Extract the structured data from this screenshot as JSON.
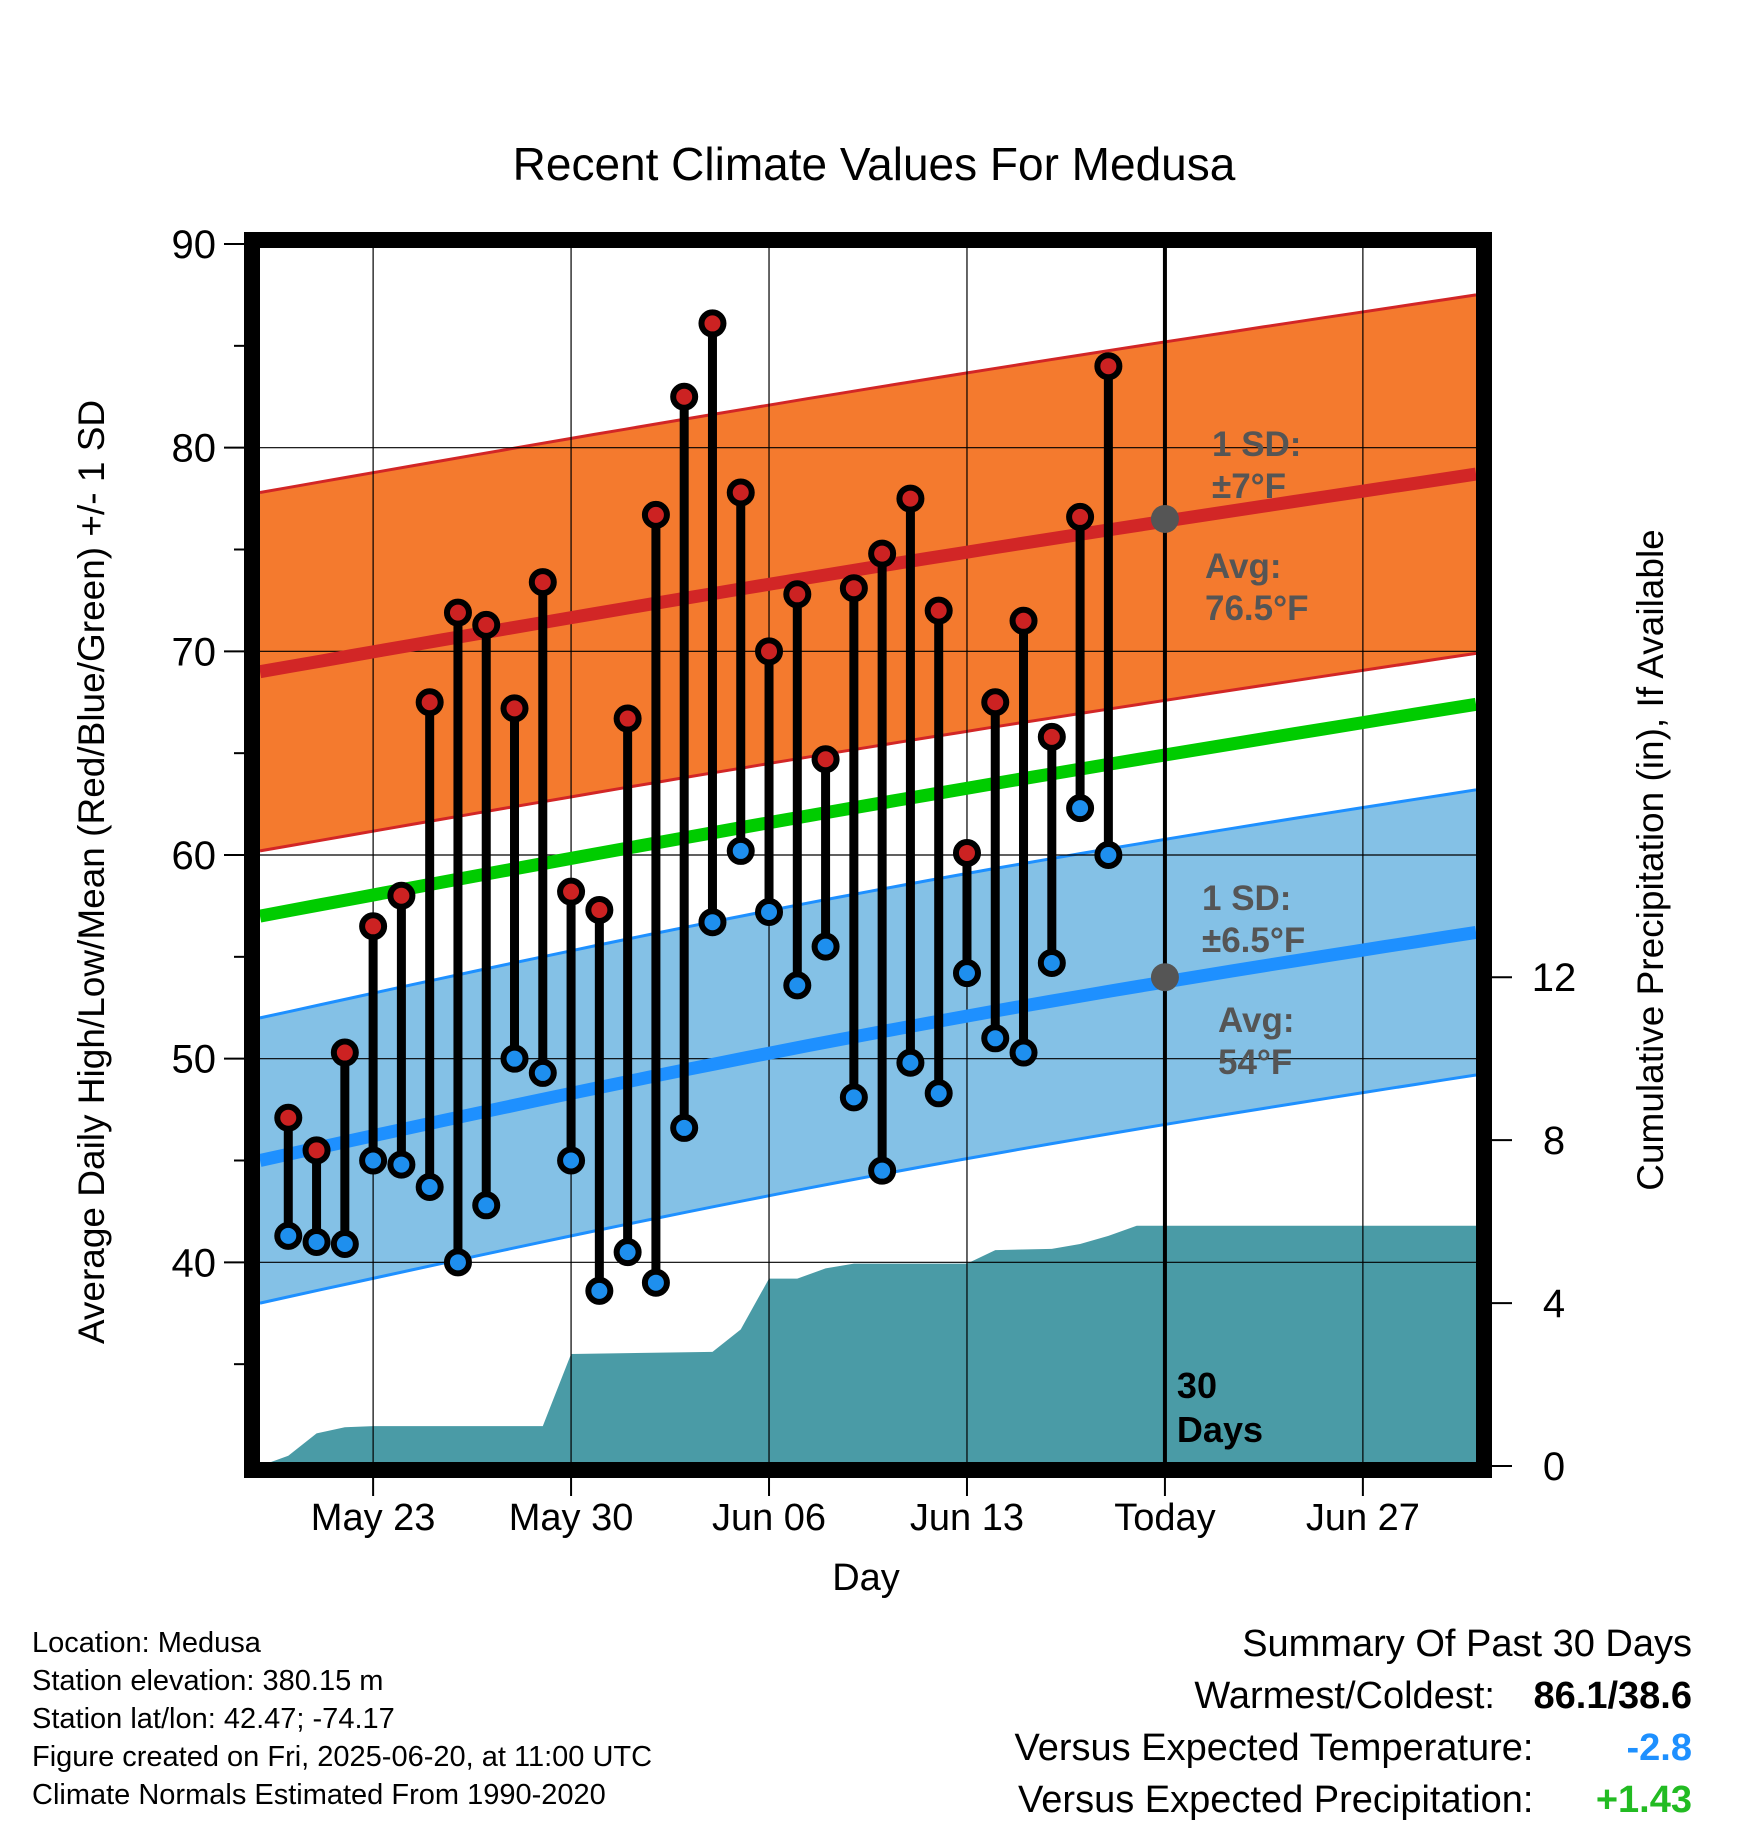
{
  "chart_data": {
    "type": "line",
    "title": "Recent Climate Values For Medusa",
    "xlabel": "Day",
    "ylabel": "Average Daily High/Low/Mean (Red/Blue/Green) +/- 1 SD",
    "y2label": "Cumulative Precipitation (in), If Available",
    "ylim": [
      30,
      90
    ],
    "y2lim": [
      0,
      30
    ],
    "yticks": [
      40,
      50,
      60,
      70,
      80,
      90
    ],
    "y2ticks": [
      0,
      4,
      8,
      12
    ],
    "xlim": [
      "2025-05-19",
      "2025-07-01"
    ],
    "xticks": [
      {
        "date": "2025-05-23",
        "label": "May 23"
      },
      {
        "date": "2025-05-30",
        "label": "May 30"
      },
      {
        "date": "2025-06-06",
        "label": "Jun 06"
      },
      {
        "date": "2025-06-13",
        "label": "Jun 13"
      },
      {
        "date": "2025-06-20",
        "label": "Today"
      },
      {
        "date": "2025-06-27",
        "label": "Jun 27"
      }
    ],
    "grid": true,
    "today": "2025-06-20",
    "today_label": "30 Days",
    "normals": {
      "high_mean": {
        "start": 69.0,
        "end": 78.7
      },
      "high_sd": 8.8,
      "low_mean": {
        "start": 45.0,
        "end": 56.2
      },
      "low_sd": 7.0,
      "mean": {
        "start": 57.0,
        "end": 67.4
      },
      "precip_start": "2025-05-19",
      "precip_end": "2025-07-01"
    },
    "annotations": {
      "high_sd": {
        "line1": "1 SD:",
        "line2": "±7°F"
      },
      "high_avg": {
        "line1": "Avg:",
        "line2": "76.5°F",
        "value": 76.5
      },
      "low_sd": {
        "line1": "1 SD:",
        "line2": "±6.5°F"
      },
      "low_avg": {
        "line1": "Avg:",
        "line2": "54°F",
        "value": 54.0
      }
    },
    "observations": [
      {
        "date": "2025-05-20",
        "high": 47.1,
        "low": 41.3
      },
      {
        "date": "2025-05-21",
        "high": 45.5,
        "low": 41.0
      },
      {
        "date": "2025-05-22",
        "high": 50.3,
        "low": 40.9
      },
      {
        "date": "2025-05-23",
        "high": 56.5,
        "low": 45.0
      },
      {
        "date": "2025-05-24",
        "high": 58.0,
        "low": 44.8
      },
      {
        "date": "2025-05-25",
        "high": 67.5,
        "low": 43.7
      },
      {
        "date": "2025-05-26",
        "high": 71.9,
        "low": 40.0
      },
      {
        "date": "2025-05-27",
        "high": 71.3,
        "low": 42.8
      },
      {
        "date": "2025-05-28",
        "high": 67.2,
        "low": 50.0
      },
      {
        "date": "2025-05-29",
        "high": 73.4,
        "low": 49.3
      },
      {
        "date": "2025-05-30",
        "high": 58.2,
        "low": 45.0
      },
      {
        "date": "2025-05-31",
        "high": 57.3,
        "low": 38.6
      },
      {
        "date": "2025-06-01",
        "high": 66.7,
        "low": 40.5
      },
      {
        "date": "2025-06-02",
        "high": 76.7,
        "low": 39.0
      },
      {
        "date": "2025-06-03",
        "high": 82.5,
        "low": 46.6
      },
      {
        "date": "2025-06-04",
        "high": 86.1,
        "low": 56.7
      },
      {
        "date": "2025-06-05",
        "high": 77.8,
        "low": 60.2
      },
      {
        "date": "2025-06-06",
        "high": 70.0,
        "low": 57.2
      },
      {
        "date": "2025-06-07",
        "high": 72.8,
        "low": 53.6
      },
      {
        "date": "2025-06-08",
        "high": 64.7,
        "low": 55.5
      },
      {
        "date": "2025-06-09",
        "high": 73.1,
        "low": 48.1
      },
      {
        "date": "2025-06-10",
        "high": 74.8,
        "low": 44.5
      },
      {
        "date": "2025-06-11",
        "high": 77.5,
        "low": 49.8
      },
      {
        "date": "2025-06-12",
        "high": 72.0,
        "low": 48.3
      },
      {
        "date": "2025-06-13",
        "high": 60.1,
        "low": 54.2
      },
      {
        "date": "2025-06-14",
        "high": 67.5,
        "low": 51.0
      },
      {
        "date": "2025-06-15",
        "high": 71.5,
        "low": 50.3
      },
      {
        "date": "2025-06-16",
        "high": 65.8,
        "low": 54.7
      },
      {
        "date": "2025-06-17",
        "high": 76.6,
        "low": 62.3
      },
      {
        "date": "2025-06-18",
        "high": 84.0,
        "low": 60.0
      }
    ],
    "precipitation": [
      {
        "date": "2025-05-19",
        "value": 0.0
      },
      {
        "date": "2025-05-20",
        "value": 0.25
      },
      {
        "date": "2025-05-21",
        "value": 0.8
      },
      {
        "date": "2025-05-22",
        "value": 0.95
      },
      {
        "date": "2025-05-23",
        "value": 0.98
      },
      {
        "date": "2025-05-29",
        "value": 0.98
      },
      {
        "date": "2025-05-30",
        "value": 2.75
      },
      {
        "date": "2025-06-04",
        "value": 2.8
      },
      {
        "date": "2025-06-05",
        "value": 3.35
      },
      {
        "date": "2025-06-06",
        "value": 4.6
      },
      {
        "date": "2025-06-07",
        "value": 4.6
      },
      {
        "date": "2025-06-08",
        "value": 4.85
      },
      {
        "date": "2025-06-09",
        "value": 4.97
      },
      {
        "date": "2025-06-13",
        "value": 4.97
      },
      {
        "date": "2025-06-14",
        "value": 5.3
      },
      {
        "date": "2025-06-16",
        "value": 5.33
      },
      {
        "date": "2025-06-17",
        "value": 5.45
      },
      {
        "date": "2025-06-18",
        "value": 5.65
      },
      {
        "date": "2025-06-19",
        "value": 5.9
      },
      {
        "date": "2025-07-01",
        "value": 5.9
      }
    ]
  },
  "colors": {
    "high_band": "#F47A2E",
    "high_line": "#D22626",
    "low_band": "#84C1E6",
    "low_line": "#1E90FF",
    "mean_line": "#00CC00",
    "precip": "#4A9BA6",
    "high_dot": "#CC2222",
    "low_dot": "#1E8FEE",
    "annotation": "#555555",
    "summary_temp": "#1E90FF",
    "summary_precip": "#22BB22"
  },
  "info": {
    "location": "Location: Medusa",
    "elevation": "Station elevation: 380.15 m",
    "latlon": "Station lat/lon: 42.47; -74.17",
    "created": "Figure created on Fri, 2025-06-20, at 11:00 UTC",
    "normals": "Climate Normals Estimated From 1990-2020"
  },
  "summary": {
    "title": "Summary Of Past 30 Days",
    "warm_cold_label": "Warmest/Coldest:",
    "warm_cold_value": "86.1/38.6",
    "temp_label": "Versus Expected Temperature:",
    "temp_value": "-2.8",
    "precip_label": "Versus Expected Precipitation:",
    "precip_value": "+1.43"
  }
}
